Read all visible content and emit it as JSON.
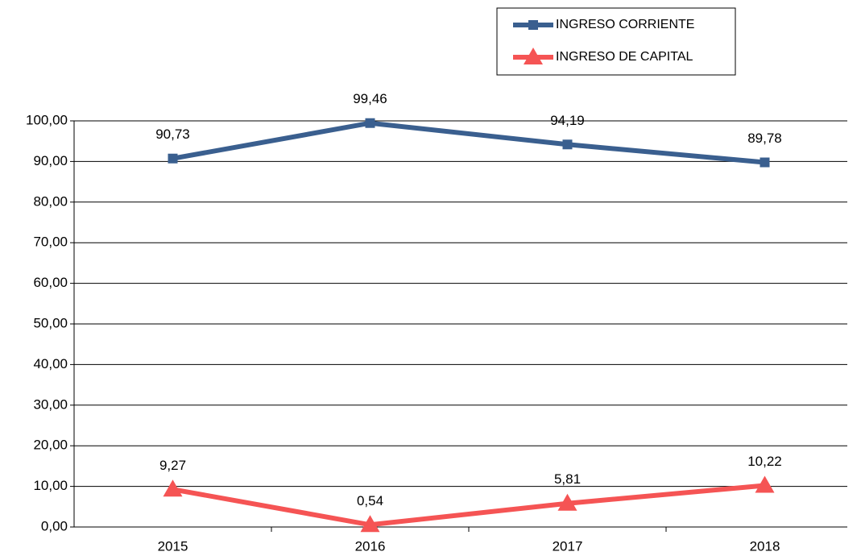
{
  "chart_data": {
    "type": "line",
    "categories": [
      "2015",
      "2016",
      "2017",
      "2018"
    ],
    "series": [
      {
        "name": "INGRESO CORRIENTE",
        "color": "#3a5f8f",
        "marker": "square",
        "values": [
          90.73,
          99.46,
          94.19,
          89.78
        ],
        "value_labels": [
          "90,73",
          "99,46",
          "94,19",
          "89,78"
        ]
      },
      {
        "name": "INGRESO DE CAPITAL",
        "color": "#f55454",
        "marker": "triangle",
        "values": [
          9.27,
          0.54,
          5.81,
          10.22
        ],
        "value_labels": [
          "9,27",
          "0,54",
          "5,81",
          "10,22"
        ]
      }
    ],
    "ylim": [
      0,
      100
    ],
    "yticks": [
      {
        "value": 0,
        "label": "0,00"
      },
      {
        "value": 10,
        "label": "10,00"
      },
      {
        "value": 20,
        "label": "20,00"
      },
      {
        "value": 30,
        "label": "30,00"
      },
      {
        "value": 40,
        "label": "40,00"
      },
      {
        "value": 50,
        "label": "50,00"
      },
      {
        "value": 60,
        "label": "60,00"
      },
      {
        "value": 70,
        "label": "70,00"
      },
      {
        "value": 80,
        "label": "80,00"
      },
      {
        "value": 90,
        "label": "90,00"
      },
      {
        "value": 100,
        "label": "100,00"
      }
    ],
    "grid": true
  }
}
